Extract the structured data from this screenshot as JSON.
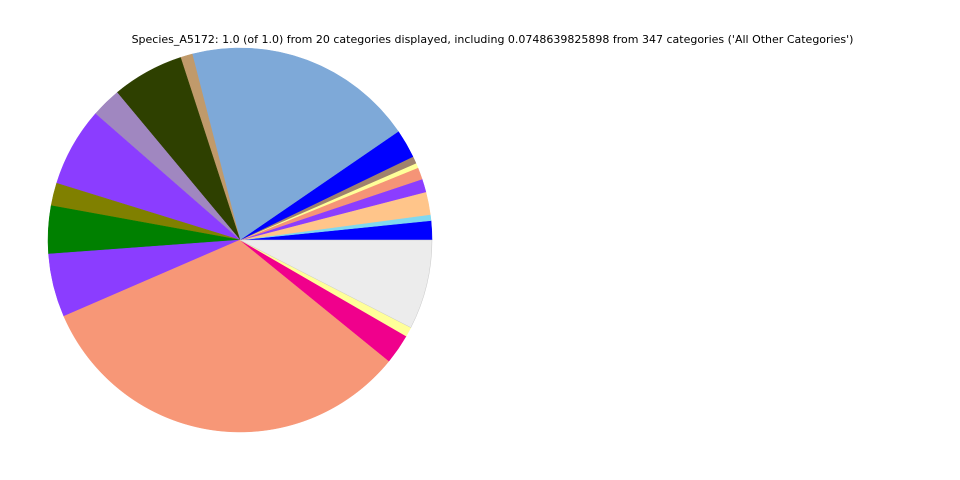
{
  "chart_data": {
    "type": "pie",
    "title": "Species_A5172: 1.0 (of 1.0) from 20 categories displayed, including 0.0748639825898 from 347 categories ('All Other Categories')",
    "start_angle_deg": 0,
    "direction": "counterclockwise",
    "slices": [
      {
        "value": 0.016,
        "color": "#0000ff"
      },
      {
        "value": 0.005,
        "color": "#80d8f0"
      },
      {
        "value": 0.019,
        "color": "#ffc58a"
      },
      {
        "value": 0.011,
        "color": "#8b3dff"
      },
      {
        "value": 0.01,
        "color": "#f59477"
      },
      {
        "value": 0.004,
        "color": "#ffff99"
      },
      {
        "value": 0.006,
        "color": "#a0826d"
      },
      {
        "value": 0.024,
        "color": "#0000ff"
      },
      {
        "value": 0.193,
        "color": "#7ea9d8"
      },
      {
        "value": 0.01,
        "color": "#c09a6b"
      },
      {
        "value": 0.06,
        "color": "#2e4000"
      },
      {
        "value": 0.025,
        "color": "#a087c0"
      },
      {
        "value": 0.066,
        "color": "#8b3dff"
      },
      {
        "value": 0.019,
        "color": "#808000"
      },
      {
        "value": 0.04,
        "color": "#008000"
      },
      {
        "value": 0.053,
        "color": "#8b3dff"
      },
      {
        "value": 0.324,
        "color": "#f79777"
      },
      {
        "value": 0.025,
        "color": "#f0008c"
      },
      {
        "value": 0.008,
        "color": "#ffff99"
      },
      {
        "value": 0.0748639825898,
        "color": "#ececec"
      }
    ]
  }
}
